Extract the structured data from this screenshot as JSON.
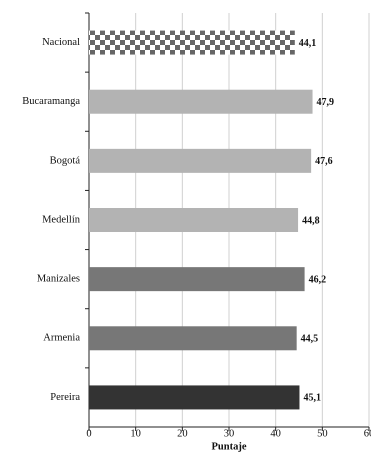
{
  "chart_data": {
    "type": "hbar",
    "categories": [
      "Nacional",
      "Bucaramanga",
      "Bogotá",
      "Medellín",
      "Manizales",
      "Armenia",
      "Pereira"
    ],
    "values": [
      44.1,
      47.9,
      47.6,
      44.8,
      46.2,
      44.5,
      45.1
    ],
    "value_labels": [
      "44,1",
      "47,9",
      "47,6",
      "44,8",
      "46,2",
      "44,5",
      "45,1"
    ],
    "colors": [
      "#666666",
      "#b3b3b3",
      "#b3b3b3",
      "#b3b3b3",
      "#777777",
      "#777777",
      "#333333"
    ],
    "patterns": [
      "checker",
      null,
      null,
      null,
      null,
      null,
      null
    ],
    "xlabel": "Puntaje",
    "xlim": [
      0,
      60
    ],
    "xticks": [
      0,
      10,
      20,
      30,
      40,
      50,
      60
    ],
    "grid": true
  }
}
